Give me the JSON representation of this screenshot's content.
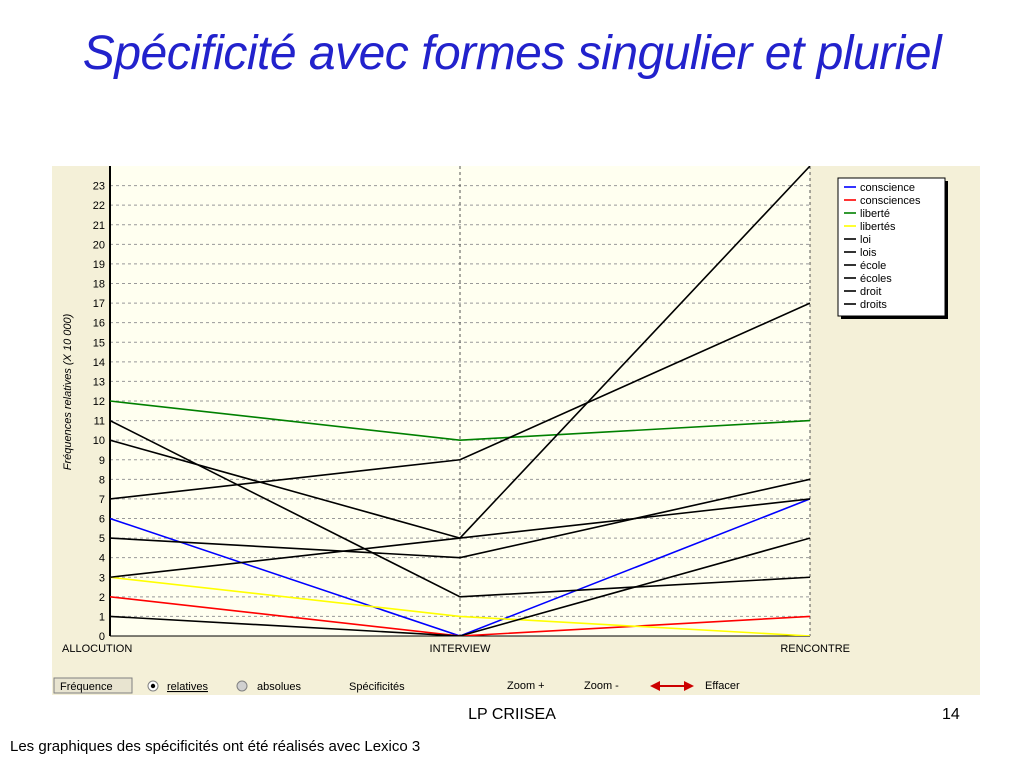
{
  "slide": {
    "title": "Spécificité avec formes singulier et pluriel",
    "footer_center": "LP CRIISEA",
    "page_number": "14",
    "caption": "Les graphiques des spécificités ont été réalisés avec Lexico 3"
  },
  "colors": {
    "title": "#2222cc",
    "plot_bg": "#fffff0",
    "panel_bg": "#f4f0d8"
  },
  "toolbar": {
    "frequence": "Fréquence",
    "relatives": "relatives",
    "absolues": "absolues",
    "specificites": "Spécificités",
    "zoom_in": "Zoom +",
    "zoom_out": "Zoom -",
    "effacer": "Effacer"
  },
  "chart_data": {
    "type": "line",
    "ylabel": "Fréquences relatives (X 10 000)",
    "xlabel": "",
    "categories": [
      "ALLOCUTION",
      "INTERVIEW",
      "RENCONTRE"
    ],
    "ylim": [
      0,
      24
    ],
    "yticks": [
      0,
      1,
      2,
      3,
      4,
      5,
      6,
      7,
      8,
      9,
      10,
      11,
      12,
      13,
      14,
      15,
      16,
      17,
      18,
      19,
      20,
      21,
      22,
      23
    ],
    "grid": true,
    "legend_position": "top-right",
    "series": [
      {
        "name": "conscience",
        "color": "#0000ff",
        "values": [
          6,
          0,
          7
        ]
      },
      {
        "name": "consciences",
        "color": "#ff0000",
        "values": [
          2,
          0,
          1
        ]
      },
      {
        "name": "liberté",
        "color": "#008000",
        "values": [
          12,
          10,
          11
        ]
      },
      {
        "name": "libertés",
        "color": "#ffff00",
        "values": [
          3,
          1,
          0
        ]
      },
      {
        "name": "loi",
        "color": "#000000",
        "values": [
          11,
          2,
          3
        ]
      },
      {
        "name": "lois",
        "color": "#000000",
        "values": [
          10,
          5,
          7
        ]
      },
      {
        "name": "école",
        "color": "#000000",
        "values": [
          7,
          9,
          17
        ]
      },
      {
        "name": "écoles",
        "color": "#000000",
        "values": [
          5,
          4,
          8
        ]
      },
      {
        "name": "droit",
        "color": "#000000",
        "values": [
          3,
          5,
          24
        ]
      },
      {
        "name": "droits",
        "color": "#000000",
        "values": [
          1,
          0,
          5
        ]
      }
    ]
  }
}
